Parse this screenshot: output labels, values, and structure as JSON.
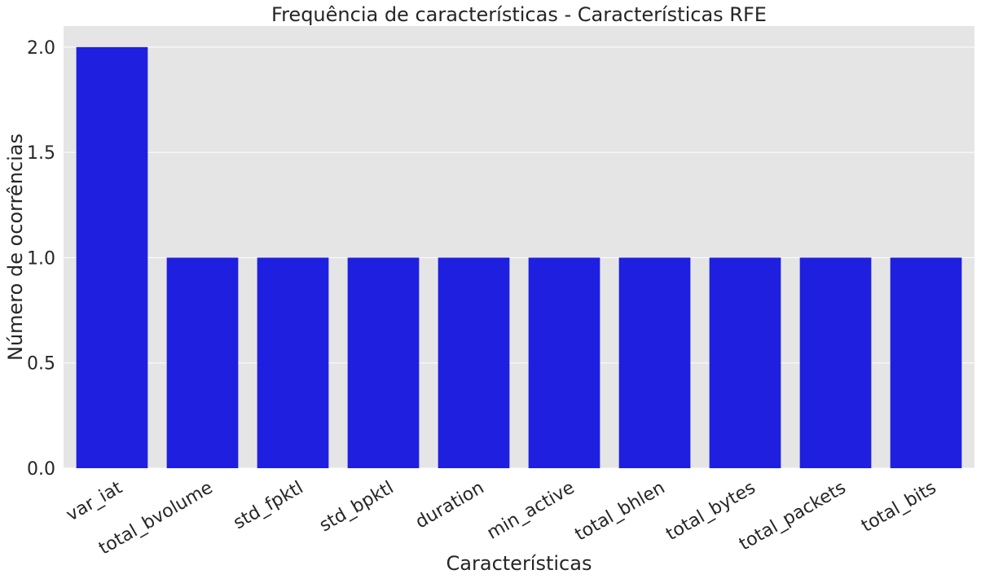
{
  "chart_data": {
    "type": "bar",
    "title": "Frequência de características - Características RFE",
    "xlabel": "Características",
    "ylabel": "Número de ocorrências",
    "categories": [
      "var_iat",
      "total_bvolume",
      "std_fpktl",
      "std_bpktl",
      "duration",
      "min_active",
      "total_bhlen",
      "total_bytes",
      "total_packets",
      "total_bits"
    ],
    "values": [
      2,
      1,
      1,
      1,
      1,
      1,
      1,
      1,
      1,
      1
    ],
    "ylim": [
      0,
      2.1
    ],
    "yticks": [
      "0.0",
      "0.5",
      "1.0",
      "1.5",
      "2.0"
    ],
    "grid": true,
    "colors": {
      "bar": "#1f1fe0",
      "plot_bg": "#e5e5e5",
      "grid": "#ffffff"
    }
  }
}
